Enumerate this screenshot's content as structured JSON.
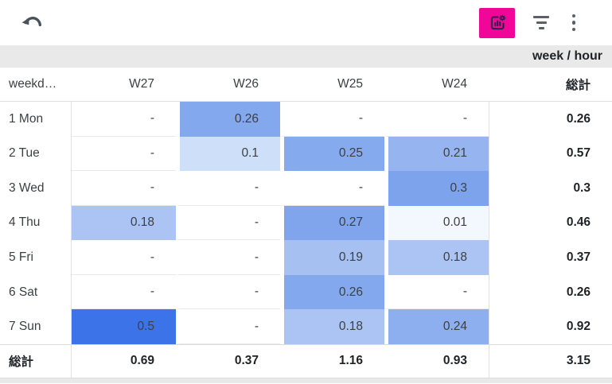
{
  "toolbar": {
    "accent_color": "#f00699",
    "icon_color": "#5a6067",
    "chart_glyph_color": "#2b1b45",
    "undo_icon": "undo-arrow",
    "chart_button_icon": "chart-settings",
    "filter_icon": "filter-list",
    "menu_icon": "more-vert"
  },
  "subheader": {
    "label": "week / hour"
  },
  "chart_data": {
    "type": "heatmap",
    "title": "week / hour",
    "corner_label": "weekd…",
    "columns": [
      "W27",
      "W26",
      "W25",
      "W24"
    ],
    "total_label": "総計",
    "empty_placeholder": "-",
    "rows": [
      {
        "label": "1 Mon",
        "values": [
          null,
          0.26,
          null,
          null
        ],
        "total": "0.26"
      },
      {
        "label": "2 Tue",
        "values": [
          null,
          0.1,
          0.25,
          0.21
        ],
        "total": "0.57"
      },
      {
        "label": "3 Wed",
        "values": [
          null,
          null,
          null,
          0.3
        ],
        "total": "0.3"
      },
      {
        "label": "4 Thu",
        "values": [
          0.18,
          null,
          0.27,
          0.01
        ],
        "total": "0.46"
      },
      {
        "label": "5 Fri",
        "values": [
          null,
          null,
          0.19,
          0.18
        ],
        "total": "0.37"
      },
      {
        "label": "6 Sat",
        "values": [
          null,
          null,
          0.26,
          null
        ],
        "total": "0.26"
      },
      {
        "label": "7 Sun",
        "values": [
          0.5,
          null,
          0.18,
          0.24
        ],
        "total": "0.92"
      }
    ],
    "column_totals": [
      "0.69",
      "0.37",
      "1.16",
      "0.93"
    ],
    "grand_total": "3.15",
    "heat_colors": {
      "0.5": "#3d73e8",
      "0.3": "#7ca3eb",
      "0.27": "#80a5ec",
      "0.26": "#84a8ed",
      "0.25": "#86aaee",
      "0.24": "#8daeef",
      "0.21": "#96b5f0",
      "0.19": "#a6c0f2",
      "0.18": "#abc4f3",
      "0.1": "#cedff9",
      "0.01": "#f3f7fe"
    },
    "scale": {
      "min": 0.01,
      "max": 0.5,
      "min_color": "#f3f7fe",
      "max_color": "#3d73e8"
    },
    "legend_position": "none",
    "grid": true
  }
}
